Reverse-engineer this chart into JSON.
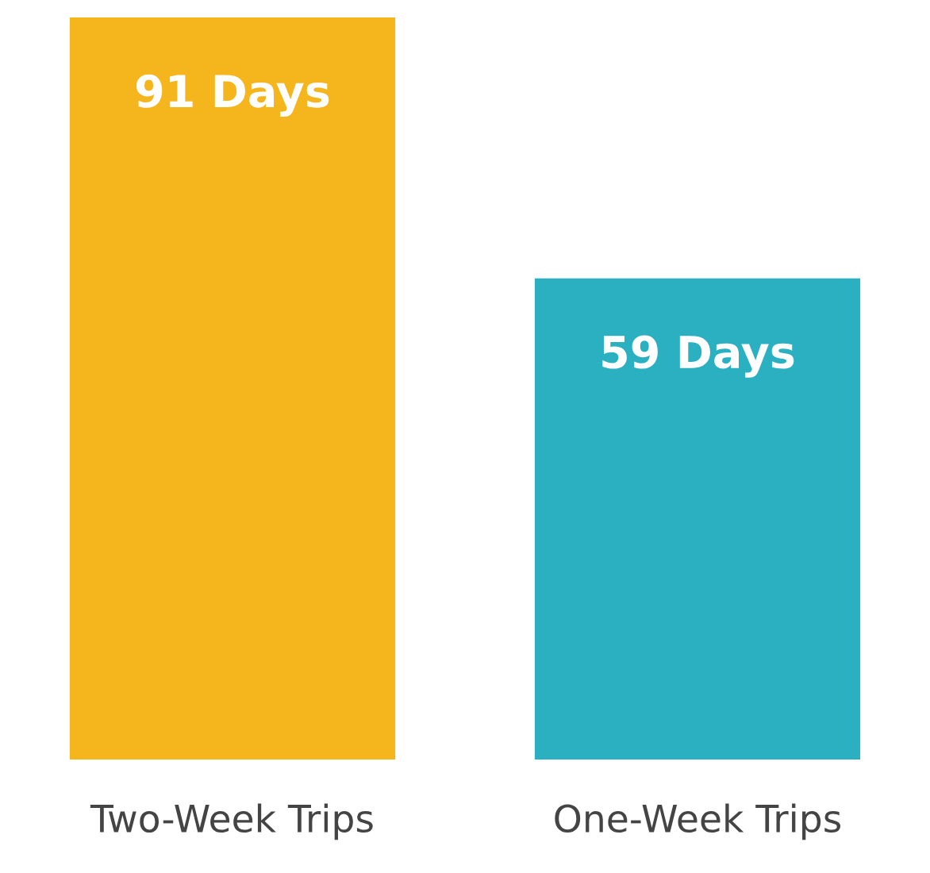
{
  "chart_data": {
    "type": "bar",
    "categories": [
      "Two-Week Trips",
      "One-Week Trips"
    ],
    "values": [
      91,
      59
    ],
    "colors": [
      "#f5b51c",
      "#2bb0c2"
    ],
    "value_labels": [
      "91 Days",
      "59 Days"
    ],
    "tick_labels": "x",
    "grid": false,
    "legend": false
  }
}
